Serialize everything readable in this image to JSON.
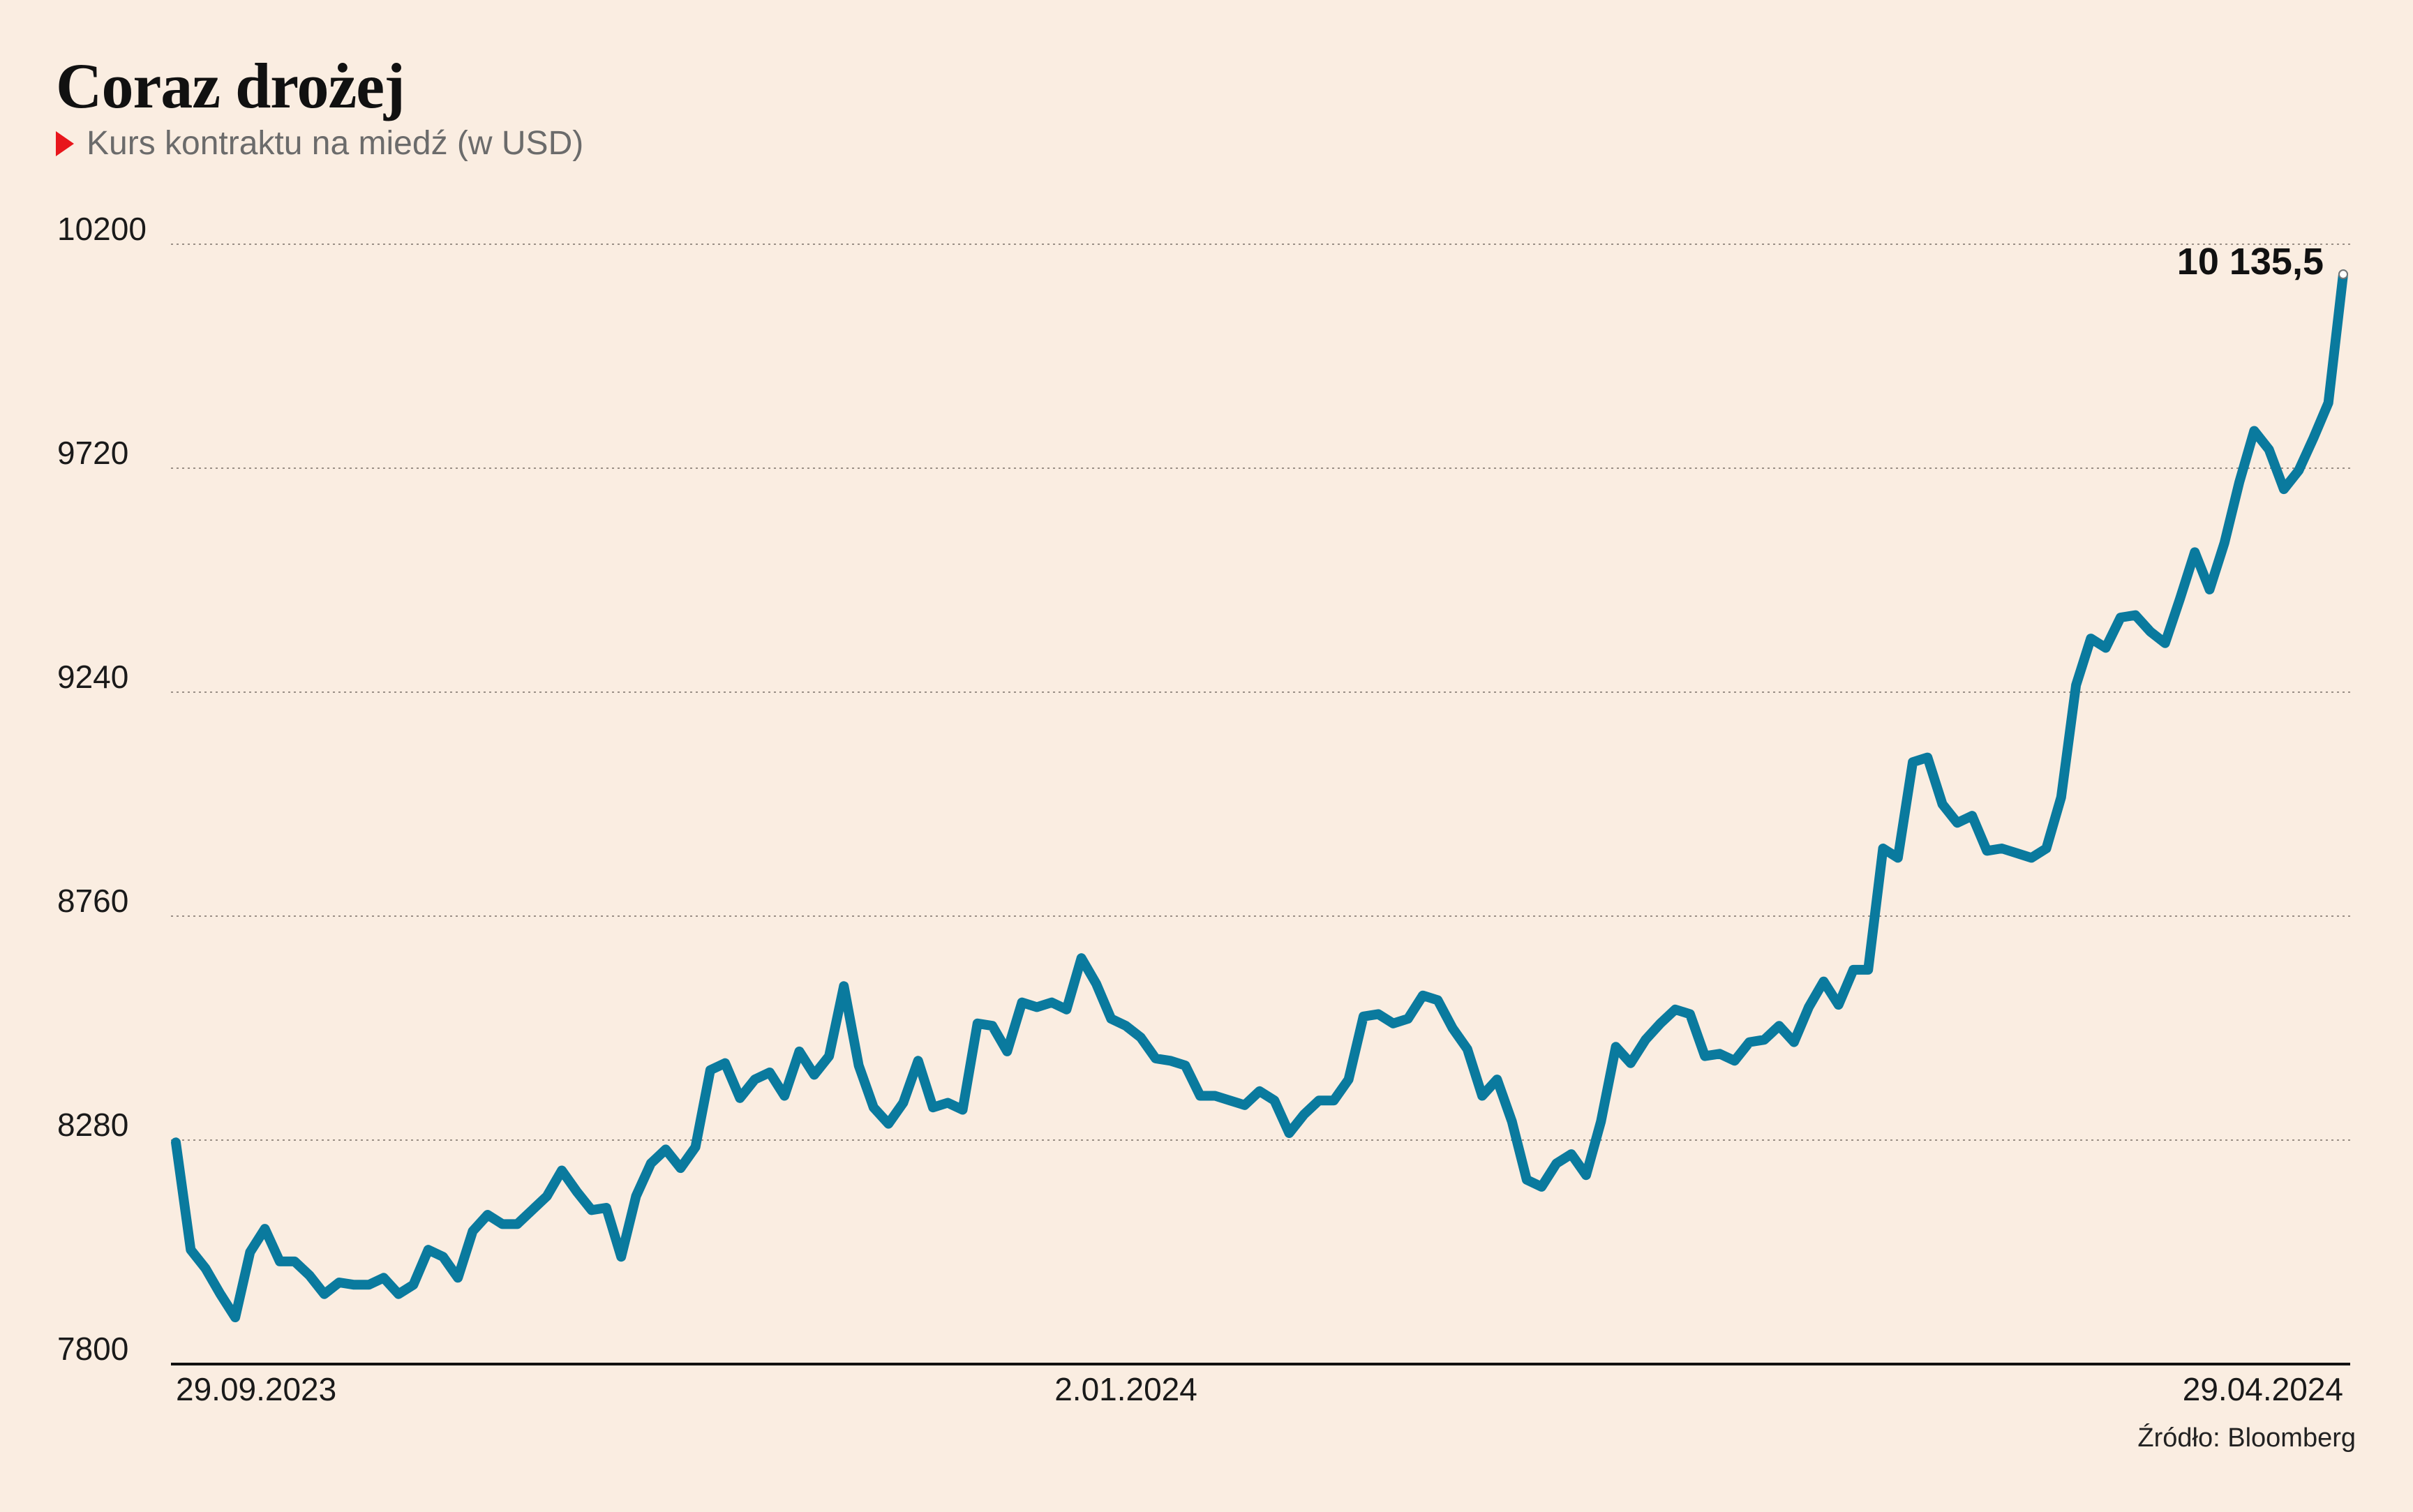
{
  "title": "Coraz drożej",
  "subtitle": "Kurs kontraktu na miedź (w USD)",
  "source": "Źródło: Bloomberg",
  "colors": {
    "line": "#0a7a9e",
    "background": "#faede1",
    "marker": "#e8161c"
  },
  "chart_data": {
    "type": "line",
    "title": "Coraz drożej",
    "subtitle": "Kurs kontraktu na miedź (w USD)",
    "ylim": [
      7800,
      10200
    ],
    "yticks": [
      7800,
      8280,
      8760,
      9240,
      9720,
      10200
    ],
    "ytick_labels": [
      "7800",
      "8280",
      "8760",
      "9240",
      "9720",
      "10200"
    ],
    "xtick_labels": [
      "29.09.2023",
      "2.01.2024",
      "29.04.2024"
    ],
    "xtick_positions": [
      0,
      64,
      145
    ],
    "grid": "horizontal dotted",
    "end_label": "10 135,5",
    "series": [
      {
        "values": [
          8275,
          8045,
          8005,
          7950,
          7900,
          8040,
          8090,
          8020,
          8020,
          7990,
          7950,
          7975,
          7970,
          7970,
          7985,
          7950,
          7970,
          8045,
          8030,
          7985,
          8085,
          8120,
          8100,
          8100,
          8130,
          8160,
          8215,
          8170,
          8130,
          8135,
          8030,
          8160,
          8230,
          8260,
          8220,
          8265,
          8430,
          8445,
          8370,
          8410,
          8425,
          8375,
          8470,
          8420,
          8460,
          8610,
          8440,
          8350,
          8315,
          8360,
          8450,
          8350,
          8360,
          8345,
          8530,
          8525,
          8470,
          8575,
          8565,
          8575,
          8560,
          8670,
          8615,
          8540,
          8525,
          8500,
          8455,
          8450,
          8440,
          8375,
          8375,
          8365,
          8355,
          8385,
          8365,
          8295,
          8335,
          8365,
          8365,
          8410,
          8545,
          8550,
          8530,
          8540,
          8590,
          8580,
          8520,
          8475,
          8375,
          8410,
          8320,
          8195,
          8180,
          8230,
          8250,
          8205,
          8320,
          8480,
          8445,
          8495,
          8530,
          8560,
          8550,
          8460,
          8465,
          8450,
          8490,
          8495,
          8525,
          8490,
          8565,
          8620,
          8570,
          8645,
          8645,
          8905,
          8885,
          9090,
          9100,
          9000,
          8960,
          8975,
          8900,
          8905,
          8895,
          8885,
          8905,
          9015,
          9255,
          9355,
          9335,
          9400,
          9405,
          9370,
          9345,
          9440,
          9540,
          9460,
          9560,
          9690,
          9800,
          9760,
          9675,
          9715,
          9785,
          9860,
          10135.5
        ]
      }
    ]
  }
}
